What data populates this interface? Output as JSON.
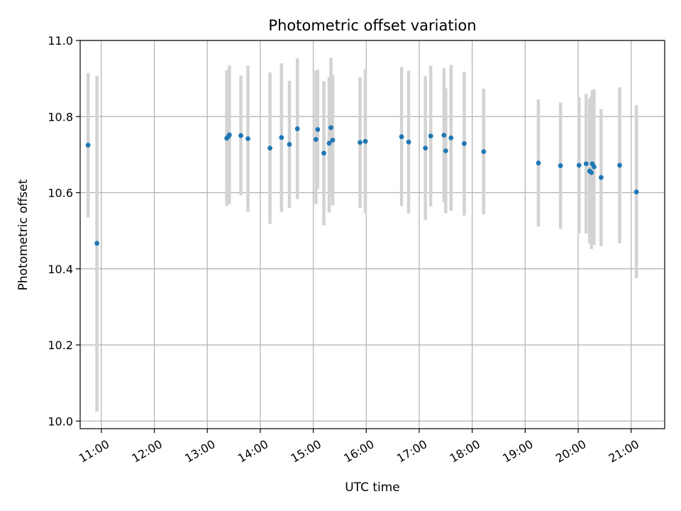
{
  "chart_data": {
    "type": "scatter",
    "title": "Photometric offset variation",
    "xlabel": "UTC time",
    "ylabel": "Photometric offset",
    "xlim": [
      "10:36",
      "21:38"
    ],
    "ylim": [
      9.98,
      11.0
    ],
    "x_ticks": [
      "11:00",
      "12:00",
      "13:00",
      "14:00",
      "15:00",
      "16:00",
      "17:00",
      "18:00",
      "19:00",
      "20:00",
      "21:00"
    ],
    "y_ticks": [
      "10.0",
      "10.2",
      "10.4",
      "10.6",
      "10.8",
      "11.0"
    ],
    "grid": true,
    "colors": {
      "point": "#1f77b4",
      "errorbar": "#d3d3d3",
      "grid": "#b0b0b0"
    },
    "points": [
      {
        "x": "10:45",
        "y": 10.725,
        "ylow": 10.535,
        "yhigh": 10.915
      },
      {
        "x": "10:55",
        "y": 10.467,
        "ylow": 10.025,
        "yhigh": 10.907
      },
      {
        "x": "13:22",
        "y": 10.743,
        "ylow": 10.565,
        "yhigh": 10.921
      },
      {
        "x": "13:24",
        "y": 10.748,
        "ylow": 10.572,
        "yhigh": 10.924
      },
      {
        "x": "13:25",
        "y": 10.752,
        "ylow": 10.57,
        "yhigh": 10.934
      },
      {
        "x": "13:38",
        "y": 10.75,
        "ylow": 10.593,
        "yhigh": 10.908
      },
      {
        "x": "13:46",
        "y": 10.742,
        "ylow": 10.55,
        "yhigh": 10.934
      },
      {
        "x": "14:11",
        "y": 10.717,
        "ylow": 10.518,
        "yhigh": 10.916
      },
      {
        "x": "14:24",
        "y": 10.745,
        "ylow": 10.55,
        "yhigh": 10.94
      },
      {
        "x": "14:33",
        "y": 10.727,
        "ylow": 10.56,
        "yhigh": 10.894
      },
      {
        "x": "14:42",
        "y": 10.768,
        "ylow": 10.583,
        "yhigh": 10.953
      },
      {
        "x": "15:03",
        "y": 10.74,
        "ylow": 10.57,
        "yhigh": 10.921
      },
      {
        "x": "15:05",
        "y": 10.766,
        "ylow": 10.61,
        "yhigh": 10.923
      },
      {
        "x": "15:12",
        "y": 10.704,
        "ylow": 10.514,
        "yhigh": 10.893
      },
      {
        "x": "15:18",
        "y": 10.73,
        "ylow": 10.548,
        "yhigh": 10.904
      },
      {
        "x": "15:20",
        "y": 10.771,
        "ylow": 10.588,
        "yhigh": 10.955
      },
      {
        "x": "15:22",
        "y": 10.738,
        "ylow": 10.567,
        "yhigh": 10.91
      },
      {
        "x": "15:53",
        "y": 10.732,
        "ylow": 10.56,
        "yhigh": 10.903
      },
      {
        "x": "15:59",
        "y": 10.735,
        "ylow": 10.546,
        "yhigh": 10.925
      },
      {
        "x": "16:40",
        "y": 10.747,
        "ylow": 10.565,
        "yhigh": 10.93
      },
      {
        "x": "16:48",
        "y": 10.733,
        "ylow": 10.545,
        "yhigh": 10.921
      },
      {
        "x": "17:07",
        "y": 10.717,
        "ylow": 10.528,
        "yhigh": 10.906
      },
      {
        "x": "17:13",
        "y": 10.749,
        "ylow": 10.564,
        "yhigh": 10.934
      },
      {
        "x": "17:28",
        "y": 10.751,
        "ylow": 10.574,
        "yhigh": 10.927
      },
      {
        "x": "17:30",
        "y": 10.71,
        "ylow": 10.546,
        "yhigh": 10.874
      },
      {
        "x": "17:36",
        "y": 10.744,
        "ylow": 10.552,
        "yhigh": 10.936
      },
      {
        "x": "17:51",
        "y": 10.729,
        "ylow": 10.54,
        "yhigh": 10.918
      },
      {
        "x": "18:13",
        "y": 10.708,
        "ylow": 10.543,
        "yhigh": 10.873
      },
      {
        "x": "19:15",
        "y": 10.678,
        "ylow": 10.511,
        "yhigh": 10.845
      },
      {
        "x": "19:40",
        "y": 10.671,
        "ylow": 10.505,
        "yhigh": 10.837
      },
      {
        "x": "20:01",
        "y": 10.672,
        "ylow": 10.493,
        "yhigh": 10.851
      },
      {
        "x": "20:09",
        "y": 10.676,
        "ylow": 10.493,
        "yhigh": 10.859
      },
      {
        "x": "20:13",
        "y": 10.657,
        "ylow": 10.467,
        "yhigh": 10.847
      },
      {
        "x": "20:15",
        "y": 10.653,
        "ylow": 10.452,
        "yhigh": 10.854
      },
      {
        "x": "20:16",
        "y": 10.676,
        "ylow": 10.48,
        "yhigh": 10.87
      },
      {
        "x": "20:18",
        "y": 10.668,
        "ylow": 10.463,
        "yhigh": 10.872
      },
      {
        "x": "20:26",
        "y": 10.64,
        "ylow": 10.46,
        "yhigh": 10.82
      },
      {
        "x": "20:47",
        "y": 10.672,
        "ylow": 10.467,
        "yhigh": 10.877
      },
      {
        "x": "21:06",
        "y": 10.602,
        "ylow": 10.375,
        "yhigh": 10.83
      }
    ]
  }
}
